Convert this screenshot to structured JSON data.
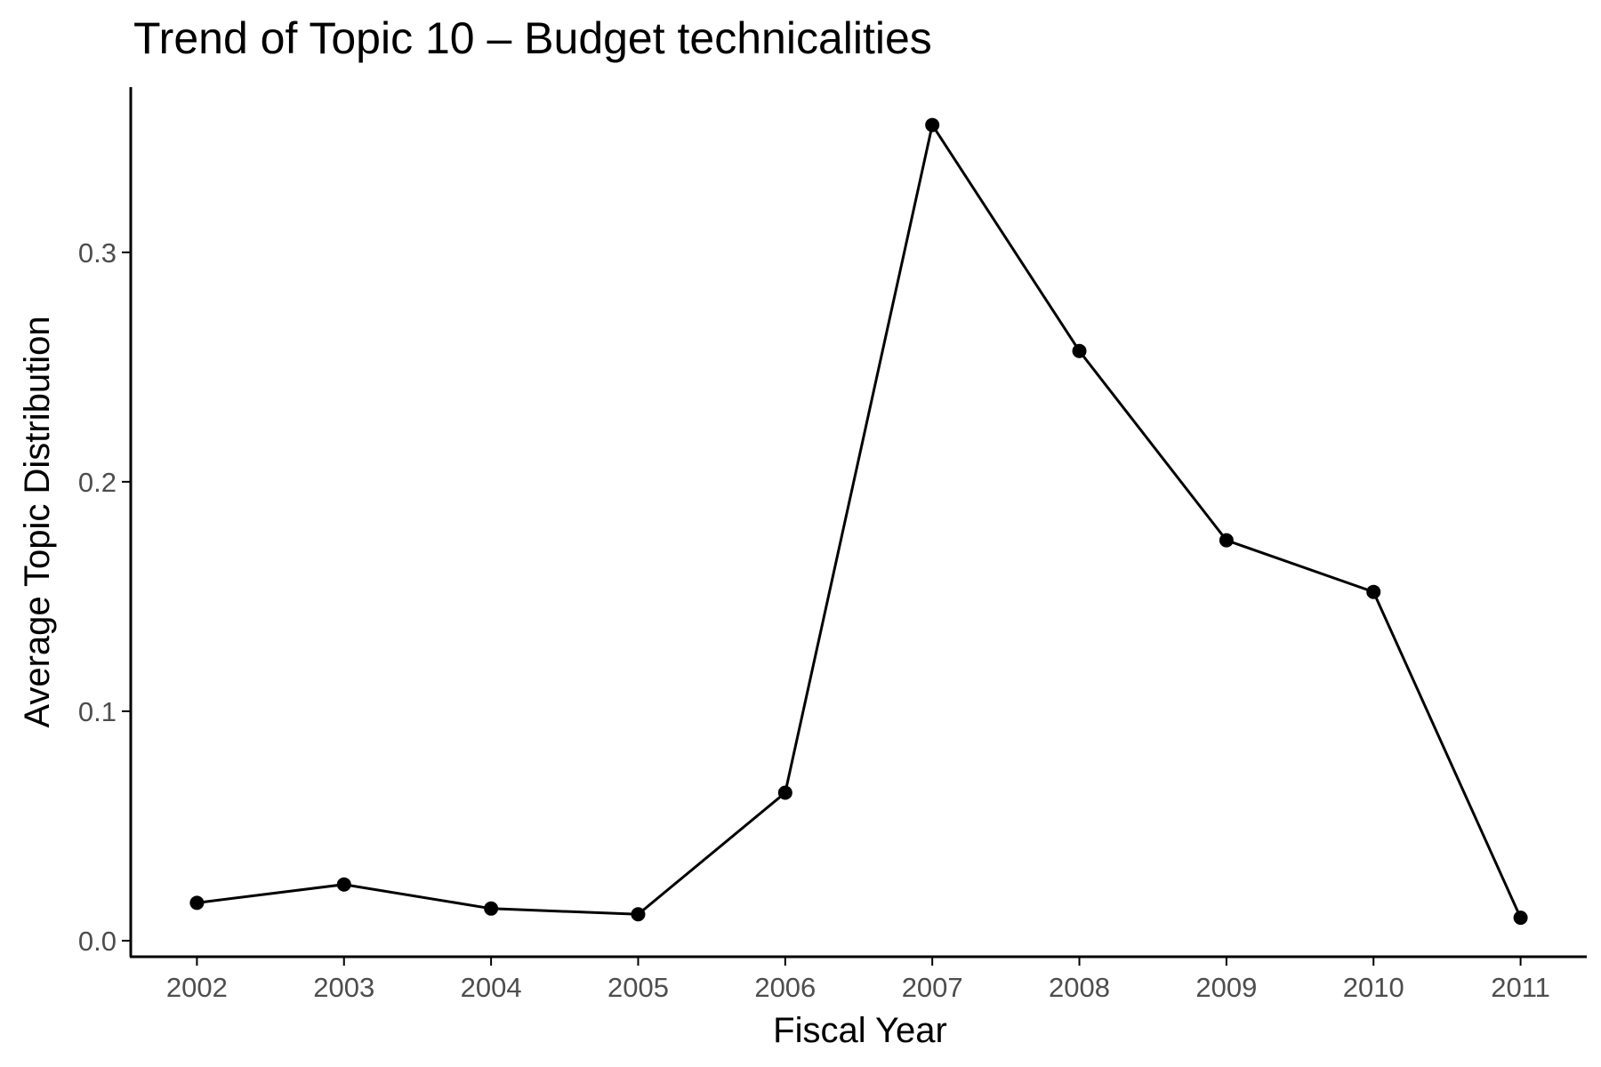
{
  "chart_data": {
    "type": "line",
    "title": "Trend of Topic 10 – Budget technicalities",
    "xlabel": "Fiscal Year",
    "ylabel": "Average Topic Distribution",
    "x": [
      2002,
      2003,
      2004,
      2005,
      2006,
      2007,
      2008,
      2009,
      2010,
      2011
    ],
    "series": [
      {
        "values": [
          0.0165,
          0.0245,
          0.014,
          0.0115,
          0.0645,
          0.3555,
          0.257,
          0.1745,
          0.152,
          0.01
        ]
      }
    ],
    "x_ticks": [
      "2002",
      "2003",
      "2004",
      "2005",
      "2006",
      "2007",
      "2008",
      "2009",
      "2010",
      "2011"
    ],
    "y_ticks": [
      "0.0",
      "0.1",
      "0.2",
      "0.3"
    ],
    "xlim": [
      2001.55,
      2011.45
    ],
    "ylim": [
      -0.007,
      0.372
    ],
    "grid": false,
    "legend": "none",
    "line_color": "#000000",
    "point_color": "#000000"
  }
}
